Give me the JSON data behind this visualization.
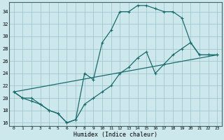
{
  "xlabel": "Humidex (Indice chaleur)",
  "bg_color": "#cde8ec",
  "grid_color": "#a0c8cc",
  "line_color": "#1a6b6b",
  "line1_x": [
    0,
    1,
    2,
    3,
    4,
    5,
    6,
    7,
    8,
    9,
    10,
    11,
    12,
    13,
    14,
    15,
    16,
    17,
    18,
    19,
    20,
    21,
    22,
    23
  ],
  "line1_y": [
    21,
    20,
    20,
    19,
    18,
    17.5,
    16,
    16.5,
    24,
    23,
    29,
    31,
    34,
    34,
    35,
    35,
    34.5,
    34,
    34,
    33,
    29,
    27,
    27,
    27
  ],
  "line2_x": [
    0,
    1,
    2,
    3,
    4,
    5,
    6,
    7,
    8,
    9,
    10,
    11,
    12,
    13,
    14,
    15,
    16,
    17,
    18,
    19,
    20,
    21,
    22,
    23
  ],
  "line2_y": [
    21,
    20,
    19.5,
    19,
    18,
    17.5,
    16,
    16.5,
    19,
    20,
    21,
    22,
    24,
    25,
    26.5,
    27.5,
    24,
    25.5,
    27,
    28,
    29,
    27,
    27,
    27
  ],
  "line3_x": [
    0,
    23
  ],
  "line3_y": [
    21,
    27
  ],
  "xlim": [
    -0.5,
    23.5
  ],
  "ylim": [
    15.5,
    35.5
  ],
  "xticks": [
    0,
    1,
    2,
    3,
    4,
    5,
    6,
    7,
    8,
    9,
    10,
    11,
    12,
    13,
    14,
    15,
    16,
    17,
    18,
    19,
    20,
    21,
    22,
    23
  ],
  "yticks": [
    16,
    18,
    20,
    22,
    24,
    26,
    28,
    30,
    32,
    34
  ]
}
